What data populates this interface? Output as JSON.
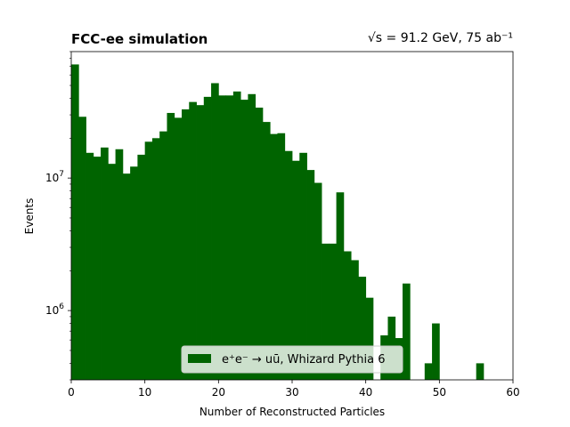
{
  "chart_data": {
    "type": "bar",
    "title": "FCC-ee simulation",
    "subtitle": "√s = 91.2 GeV, 75 ab⁻¹",
    "xlabel": "Number of Reconstructed Particles",
    "ylabel": "Events",
    "xlim": [
      0,
      60
    ],
    "ylim": [
      300000,
      90000000
    ],
    "yscale": "log",
    "bin_width": 1,
    "x_ticks": [
      "0",
      "10",
      "20",
      "30",
      "40",
      "50",
      "60"
    ],
    "y_ticks": [
      {
        "value": 1000000,
        "base": "10",
        "exp": "6"
      },
      {
        "value": 10000000,
        "base": "10",
        "exp": "7"
      }
    ],
    "grid": false,
    "legend_position": "lower-center",
    "series": [
      {
        "name": "e⁺e⁻ → uū, Whizard Pythia 6",
        "color": "#006400",
        "bins": [
          0,
          1,
          2,
          3,
          4,
          5,
          6,
          7,
          8,
          9,
          10,
          11,
          12,
          13,
          14,
          15,
          16,
          17,
          18,
          19,
          20,
          21,
          22,
          23,
          24,
          25,
          26,
          27,
          28,
          29,
          30,
          31,
          32,
          33,
          34,
          35,
          36,
          37,
          38,
          39,
          40,
          41,
          42,
          43,
          44,
          45,
          46,
          47,
          48,
          49,
          50,
          51,
          52,
          53,
          54,
          55,
          56,
          57,
          58,
          59
        ],
        "values": [
          72000000,
          29000000,
          15500000,
          14500000,
          17000000,
          12800000,
          16500000,
          10800000,
          12200000,
          15000000,
          18800000,
          20000000,
          22500000,
          31000000,
          28500000,
          33000000,
          37500000,
          35500000,
          41000000,
          52000000,
          42000000,
          42000000,
          45000000,
          39000000,
          43000000,
          34000000,
          26500000,
          21500000,
          21800000,
          16000000,
          13500000,
          15500000,
          11500000,
          9200000,
          3200000,
          3200000,
          7800000,
          2800000,
          2400000,
          1800000,
          1250000,
          0,
          650000,
          900000,
          620000,
          1600000,
          0,
          0,
          400000,
          800000,
          0,
          0,
          0,
          0,
          0,
          400000,
          0,
          0,
          0,
          0
        ]
      }
    ]
  }
}
